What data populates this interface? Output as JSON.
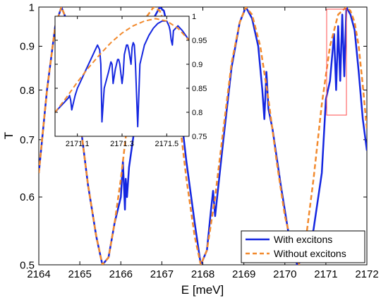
{
  "chart_data": [
    {
      "type": "line",
      "title": "",
      "xlabel": "E [meV]",
      "ylabel": "T",
      "xlim": [
        2164,
        2172
      ],
      "ylim": [
        0.5,
        1.0
      ],
      "y_scale": "log",
      "xticks": [
        "2164",
        "2165",
        "2166",
        "2167",
        "2168",
        "2169",
        "2170",
        "2171",
        "2172"
      ],
      "xtick_values": [
        2164,
        2165,
        2166,
        2167,
        2168,
        2169,
        2170,
        2171,
        2172
      ],
      "yticks": [
        "0.5",
        "0.6",
        "0.7",
        "0.8",
        "0.9",
        "1"
      ],
      "ytick_values": [
        0.5,
        0.6,
        0.7,
        0.8,
        0.9,
        1.0
      ],
      "grid": false,
      "legend_position": "bottom-right",
      "series": [
        {
          "name": "With excitons",
          "color": "#1426e0",
          "style": "solid",
          "x": [
            2164.0,
            2164.2,
            2164.4,
            2164.55,
            2164.7,
            2164.85,
            2165.0,
            2165.2,
            2165.4,
            2165.55,
            2165.7,
            2165.85,
            2166.0,
            2166.05,
            2166.1,
            2166.12,
            2166.15,
            2166.2,
            2166.4,
            2166.6,
            2166.8,
            2166.95,
            2167.05,
            2167.2,
            2167.4,
            2167.6,
            2167.8,
            2167.95,
            2168.1,
            2168.2,
            2168.25,
            2168.3,
            2168.5,
            2168.7,
            2168.9,
            2169.05,
            2169.2,
            2169.35,
            2169.45,
            2169.5,
            2169.55,
            2169.6,
            2169.7,
            2169.9,
            2170.1,
            2170.3,
            2170.5,
            2170.7,
            2170.9,
            2171.0,
            2171.1,
            2171.2,
            2171.25,
            2171.3,
            2171.35,
            2171.4,
            2171.45,
            2171.5,
            2171.6,
            2171.7,
            2171.8,
            2171.9,
            2172.0
          ],
          "y": [
            0.64,
            0.8,
            0.95,
            1.0,
            0.96,
            0.86,
            0.74,
            0.62,
            0.54,
            0.5,
            0.51,
            0.56,
            0.6,
            0.66,
            0.58,
            0.63,
            0.6,
            0.65,
            0.76,
            0.88,
            0.97,
            1.0,
            0.99,
            0.92,
            0.8,
            0.66,
            0.56,
            0.5,
            0.52,
            0.58,
            0.61,
            0.57,
            0.7,
            0.85,
            0.96,
            1.0,
            0.97,
            0.9,
            0.8,
            0.74,
            0.84,
            0.76,
            0.72,
            0.62,
            0.54,
            0.5,
            0.51,
            0.55,
            0.64,
            0.78,
            0.82,
            0.93,
            0.8,
            0.95,
            0.82,
            0.98,
            0.83,
            1.0,
            0.98,
            0.94,
            0.84,
            0.74,
            0.68
          ]
        },
        {
          "name": "Without excitons",
          "color": "#f28a2e",
          "style": "dashed",
          "x": [
            2164.0,
            2164.2,
            2164.4,
            2164.55,
            2164.7,
            2164.85,
            2165.0,
            2165.2,
            2165.4,
            2165.55,
            2165.7,
            2165.85,
            2166.0,
            2166.2,
            2166.4,
            2166.6,
            2166.8,
            2166.95,
            2167.05,
            2167.2,
            2167.4,
            2167.6,
            2167.8,
            2167.95,
            2168.1,
            2168.3,
            2168.5,
            2168.7,
            2168.9,
            2169.05,
            2169.2,
            2169.4,
            2169.6,
            2169.8,
            2170.0,
            2170.2,
            2170.35,
            2170.5,
            2170.7,
            2170.9,
            2171.1,
            2171.3,
            2171.5,
            2171.6,
            2171.7,
            2171.8,
            2171.9,
            2172.0
          ],
          "y": [
            0.64,
            0.8,
            0.95,
            1.0,
            0.96,
            0.86,
            0.74,
            0.62,
            0.54,
            0.5,
            0.51,
            0.56,
            0.63,
            0.76,
            0.88,
            0.97,
            1.0,
            0.99,
            0.96,
            0.88,
            0.76,
            0.63,
            0.54,
            0.5,
            0.52,
            0.6,
            0.72,
            0.86,
            0.96,
            1.0,
            0.98,
            0.9,
            0.78,
            0.66,
            0.57,
            0.52,
            0.5,
            0.53,
            0.63,
            0.77,
            0.9,
            0.98,
            1.0,
            0.99,
            0.96,
            0.9,
            0.81,
            0.72
          ]
        }
      ]
    },
    {
      "type": "line",
      "title": "",
      "xlabel": "",
      "ylabel": "",
      "xlim": [
        2171.0,
        2171.6
      ],
      "ylim": [
        0.75,
        1.0
      ],
      "xticks": [
        "2171.1",
        "2171.3",
        "2171.5"
      ],
      "xtick_values": [
        2171.1,
        2171.3,
        2171.5
      ],
      "yticks": [
        "0.75",
        "0.8",
        "0.85",
        "0.9",
        "0.95",
        "1"
      ],
      "ytick_values": [
        0.75,
        0.8,
        0.85,
        0.9,
        0.95,
        1.0
      ],
      "grid": false,
      "series": [
        {
          "color": "#1426e0",
          "style": "solid",
          "x": [
            2171.0,
            2171.02,
            2171.04,
            2171.06,
            2171.065,
            2171.07,
            2171.075,
            2171.08,
            2171.085,
            2171.09,
            2171.1,
            2171.12,
            2171.14,
            2171.16,
            2171.18,
            2171.19,
            2171.2,
            2171.205,
            2171.21,
            2171.22,
            2171.24,
            2171.25,
            2171.255,
            2171.26,
            2171.27,
            2171.28,
            2171.285,
            2171.29,
            2171.3,
            2171.305,
            2171.31,
            2171.32,
            2171.325,
            2171.33,
            2171.34,
            2171.345,
            2171.35,
            2171.355,
            2171.36,
            2171.37,
            2171.38,
            2171.4,
            2171.42,
            2171.44,
            2171.46,
            2171.48,
            2171.5,
            2171.51,
            2171.515,
            2171.52,
            2171.525,
            2171.53,
            2171.55,
            2171.57,
            2171.6
          ],
          "y": [
            0.8,
            0.81,
            0.82,
            0.83,
            0.835,
            0.825,
            0.805,
            0.815,
            0.825,
            0.835,
            0.85,
            0.87,
            0.89,
            0.91,
            0.93,
            0.94,
            0.93,
            0.9,
            0.78,
            0.85,
            0.885,
            0.905,
            0.9,
            0.86,
            0.89,
            0.91,
            0.91,
            0.9,
            0.86,
            0.88,
            0.92,
            0.94,
            0.94,
            0.93,
            0.9,
            0.935,
            0.945,
            0.94,
            0.9,
            0.77,
            0.9,
            0.94,
            0.96,
            0.975,
            0.985,
            0.99,
            0.99,
            0.98,
            0.97,
            0.95,
            0.94,
            0.97,
            0.98,
            0.97,
            0.95
          ]
        },
        {
          "color": "#f28a2e",
          "style": "dashed",
          "x": [
            2171.0,
            2171.05,
            2171.1,
            2171.15,
            2171.2,
            2171.25,
            2171.3,
            2171.35,
            2171.4,
            2171.45,
            2171.5,
            2171.55,
            2171.6
          ],
          "y": [
            0.8,
            0.83,
            0.863,
            0.893,
            0.92,
            0.945,
            0.965,
            0.98,
            0.99,
            0.995,
            0.99,
            0.975,
            0.95
          ]
        }
      ]
    }
  ]
}
